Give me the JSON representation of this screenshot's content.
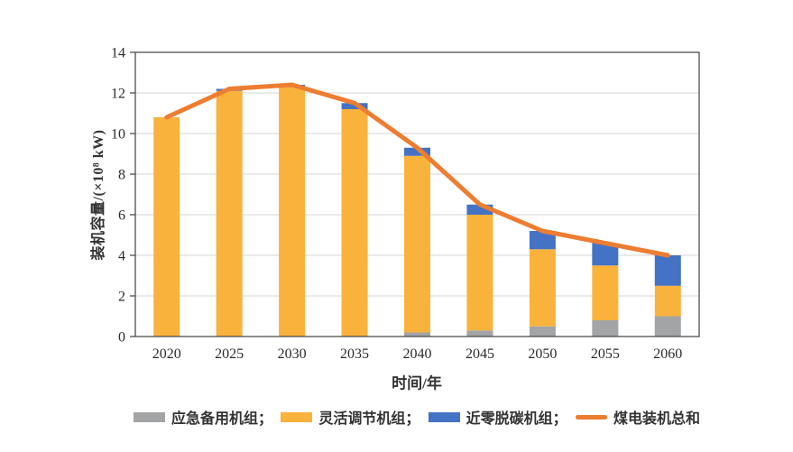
{
  "chart_data": {
    "type": "bar",
    "subtype": "stacked-bars-with-total-line",
    "title": "",
    "xlabel": "时间/年",
    "ylabel": "装机容量/(×10⁸ kW)",
    "categories": [
      "2020",
      "2025",
      "2030",
      "2035",
      "2040",
      "2045",
      "2050",
      "2055",
      "2060"
    ],
    "series": [
      {
        "name": "应急备用机组",
        "type": "bar",
        "color": "#A2A4A6",
        "values": [
          0,
          0,
          0,
          0,
          0.2,
          0.3,
          0.5,
          0.8,
          1.0
        ]
      },
      {
        "name": "灵活调节机组",
        "type": "bar",
        "color": "#F9B23B",
        "values": [
          10.8,
          12.1,
          12.3,
          11.2,
          8.7,
          5.7,
          3.8,
          2.7,
          1.5
        ]
      },
      {
        "name": "近零脱碳机组",
        "type": "bar",
        "color": "#4472C4",
        "values": [
          0,
          0.1,
          0.1,
          0.3,
          0.4,
          0.5,
          0.9,
          1.1,
          1.5
        ]
      },
      {
        "name": "煤电装机总和",
        "type": "line",
        "color": "#ED7D31",
        "values": [
          10.8,
          12.2,
          12.4,
          11.5,
          9.3,
          6.5,
          5.2,
          4.6,
          4.0
        ]
      }
    ],
    "ylim": [
      0,
      14
    ],
    "yticks": [
      0,
      2,
      4,
      6,
      8,
      10,
      12,
      14
    ],
    "grid": "horizontal",
    "legend_position": "bottom"
  },
  "legend": {
    "items": [
      {
        "label": "应急备用机组；",
        "swatch": "box",
        "color": "#A2A4A6"
      },
      {
        "label": "灵活调节机组；",
        "swatch": "box",
        "color": "#F9B23B"
      },
      {
        "label": "近零脱碳机组；",
        "swatch": "box",
        "color": "#4472C4"
      },
      {
        "label": "煤电装机总和",
        "swatch": "line",
        "color": "#ED7D31"
      }
    ]
  },
  "colors": {
    "background": "#FFFFFF",
    "grid": "#D6D6D6",
    "axis": "#4D4D4D",
    "text": "#2B2B2B"
  }
}
